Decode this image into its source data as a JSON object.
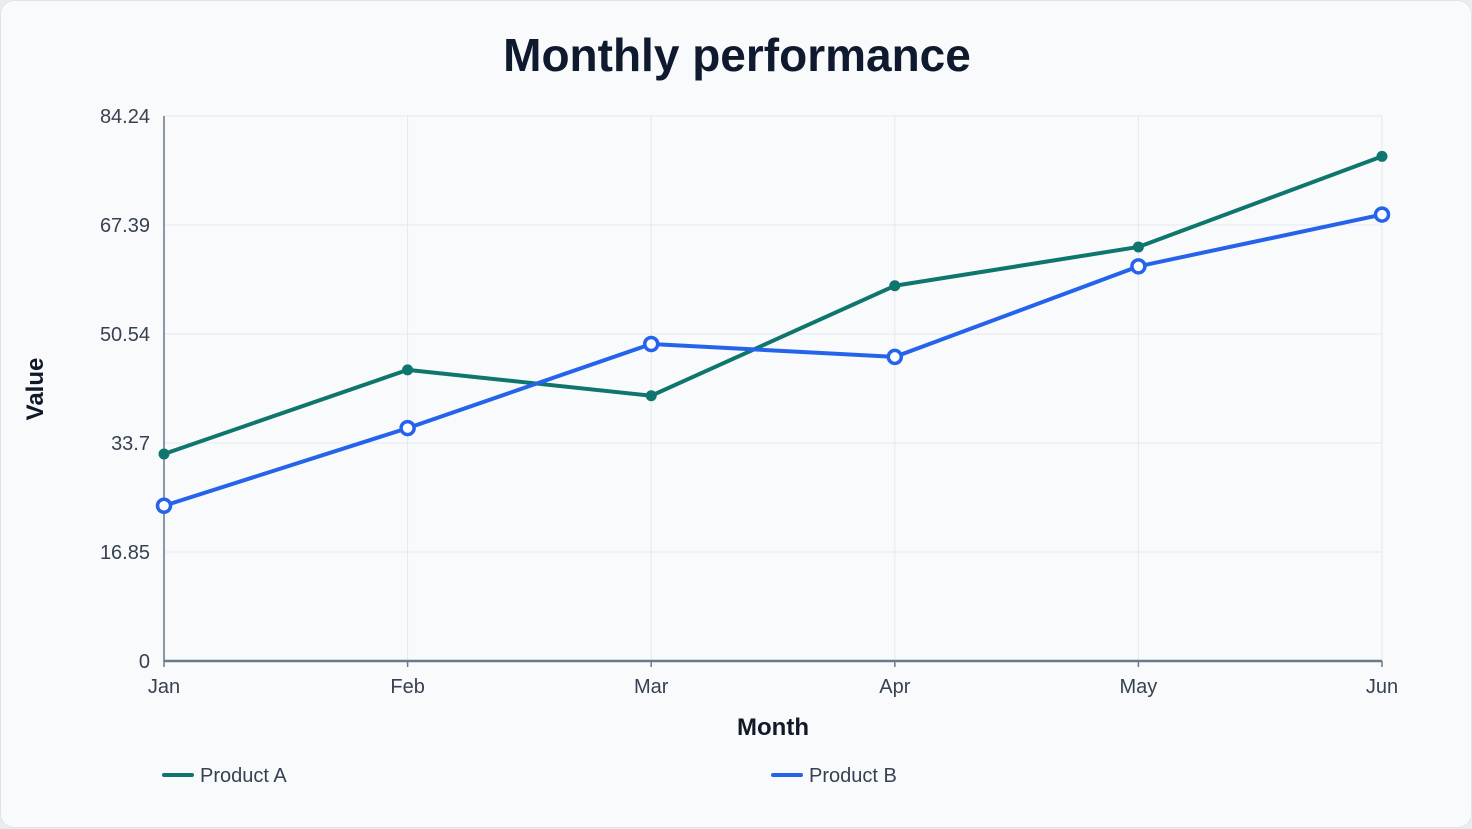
{
  "chart_data": {
    "type": "line",
    "title": "Monthly performance",
    "xlabel": "Month",
    "ylabel": "Value",
    "categories": [
      "Jan",
      "Feb",
      "Mar",
      "Apr",
      "May",
      "Jun"
    ],
    "y_ticks": [
      "0",
      "16.85",
      "33.7",
      "50.54",
      "67.39",
      "84.24"
    ],
    "ylim": [
      0,
      84.24
    ],
    "grid": true,
    "legend_position": "bottom",
    "series": [
      {
        "name": "Product A",
        "color": "#0f766e",
        "marker": "filled-circle",
        "values": [
          32.0,
          45.0,
          41.0,
          58.0,
          64.0,
          78.0
        ]
      },
      {
        "name": "Product B",
        "color": "#2563eb",
        "marker": "hollow-circle",
        "values": [
          24.0,
          36.0,
          49.0,
          47.0,
          61.0,
          69.0
        ]
      }
    ]
  }
}
